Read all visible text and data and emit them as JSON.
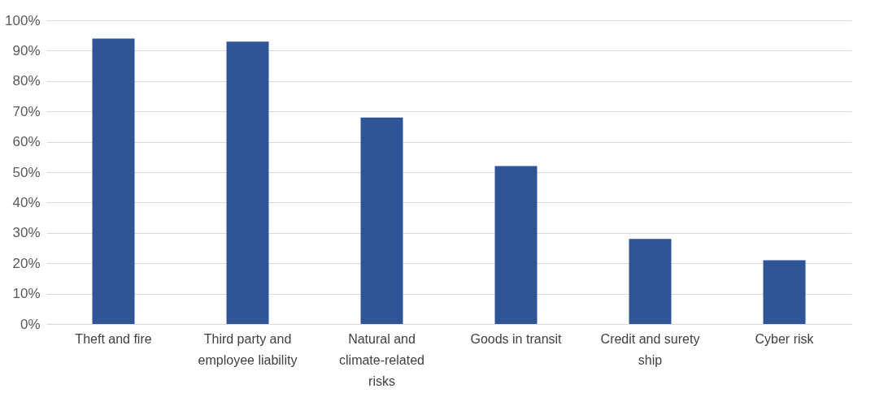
{
  "chart_data": {
    "type": "bar",
    "categories": [
      "Theft and fire",
      "Third party and employee liability",
      "Natural and climate-related risks",
      "Goods in transit",
      "Credit and surety ship",
      "Cyber risk"
    ],
    "values": [
      94,
      93,
      68,
      52,
      28,
      21
    ],
    "color": "#2f5597",
    "ylim": [
      0,
      100
    ],
    "yticks": [
      {
        "value": 0,
        "label": "0%"
      },
      {
        "value": 10,
        "label": "10%"
      },
      {
        "value": 20,
        "label": "20%"
      },
      {
        "value": 30,
        "label": "30%"
      },
      {
        "value": 40,
        "label": "40%"
      },
      {
        "value": 50,
        "label": "50%"
      },
      {
        "value": 60,
        "label": "60%"
      },
      {
        "value": 70,
        "label": "70%"
      },
      {
        "value": 80,
        "label": "80%"
      },
      {
        "value": 90,
        "label": "90%"
      },
      {
        "value": 100,
        "label": "100%"
      }
    ],
    "grid": "y"
  }
}
